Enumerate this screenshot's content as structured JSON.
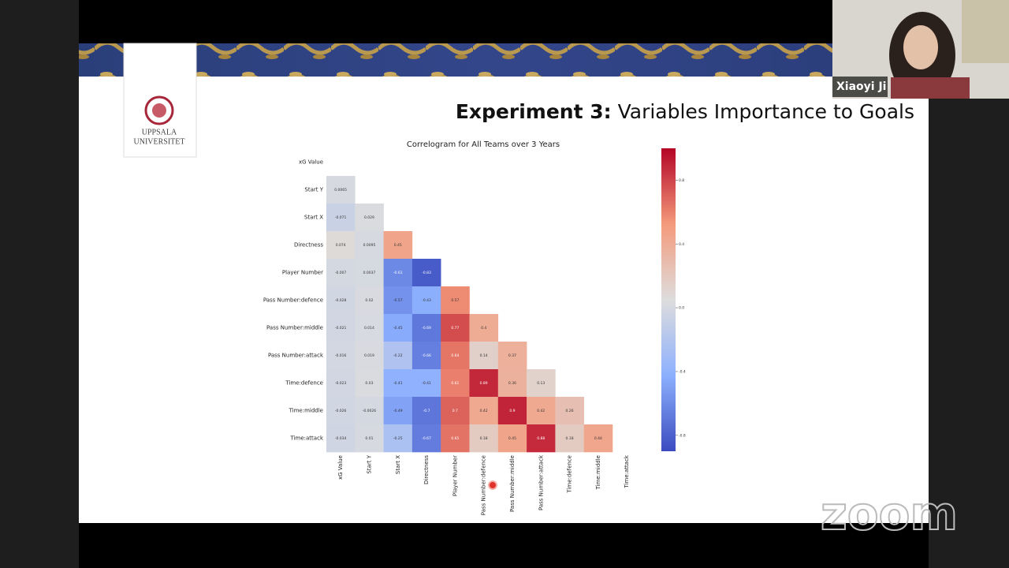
{
  "slide": {
    "title_bold": "Experiment 3:",
    "title_rest": "Variables Importance to Goals",
    "logo_line1": "UPPSALA",
    "logo_line2": "UNIVERSITET"
  },
  "participant": {
    "name": "Xiaoyi Ji"
  },
  "watermark": "zoom",
  "chart_data": {
    "type": "heatmap",
    "title": "Correlogram for All Teams over 3 Years",
    "rows": [
      "xG Value",
      "Start Y",
      "Start X",
      "Directness",
      "Player Number",
      "Pass Number:defence",
      "Pass Number:middle",
      "Pass Number:attack",
      "Time:defence",
      "Time:middle",
      "Time:attack"
    ],
    "columns": [
      "xG Value",
      "Start Y",
      "Start X",
      "Directness",
      "Player Number",
      "Pass Number:defence",
      "Pass Number:middle",
      "Pass Number:attack",
      "Time:defence",
      "Time:middle",
      "Time:attack"
    ],
    "values": [
      [],
      [
        0.0065
      ],
      [
        -0.071,
        0.029
      ],
      [
        0.074,
        0.0095,
        0.45
      ],
      [
        -0.007,
        0.0037,
        -0.61,
        -0.83
      ],
      [
        -0.028,
        0.02,
        -0.57,
        -0.43,
        0.57
      ],
      [
        -0.021,
        0.014,
        -0.45,
        -0.69,
        0.77,
        0.4
      ],
      [
        -0.016,
        0.019,
        -0.22,
        -0.66,
        0.64,
        0.14,
        0.37
      ],
      [
        -0.023,
        0.03,
        -0.41,
        -0.41,
        0.61,
        0.89,
        0.36,
        0.13
      ],
      [
        -0.026,
        -0.0026,
        -0.49,
        -0.7,
        0.7,
        0.42,
        0.9,
        0.42,
        0.26
      ],
      [
        -0.034,
        0.01,
        -0.25,
        -0.67,
        0.65,
        0.18,
        0.45,
        0.88,
        0.18,
        0.44
      ]
    ],
    "clim": [
      -0.9,
      1.0
    ],
    "colorbar_ticks": [
      0.8,
      0.4,
      {
        "value": 0,
        "label": "0.0"
      },
      -0.4,
      -0.8
    ],
    "colormap": [
      "#3b4cc0",
      "#8db0fe",
      "#dddddd",
      "#f49a7b",
      "#b40426"
    ]
  }
}
